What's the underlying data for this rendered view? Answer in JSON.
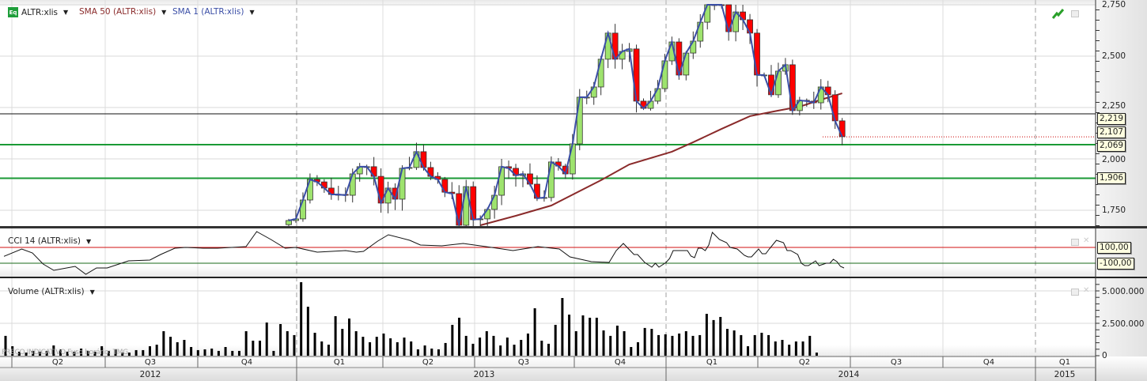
{
  "legend": {
    "instrument": "ALTR:xlis",
    "sma50": "SMA 50 (ALTR:xlis)",
    "sma1": "SMA 1 (ALTR:xlis)",
    "cci": "CCI 14 (ALTR:xlis)",
    "volume": "Volume (ALTR:xlis)",
    "eq_badge": "Eq"
  },
  "colors": {
    "up": "#9ee36e",
    "down": "#ff0000",
    "sma1": "#3a4ea6",
    "sma50": "#8a2a2a",
    "level_green": "#1a9a35",
    "cci_upper": "#d01010",
    "cci_lower": "#1a6a1a"
  },
  "price_axis": {
    "ticks": [
      "2,750",
      "2,500",
      "2,250",
      "2,000",
      "1,750"
    ],
    "tick_values": [
      2750,
      2500,
      2250,
      2000,
      1750
    ],
    "range": [
      1675,
      2772
    ],
    "levels": [
      {
        "label": "2,219",
        "value": 2219,
        "style": "black"
      },
      {
        "label": "2,107",
        "value": 2107,
        "style": "red-dotted"
      },
      {
        "label": "2,069",
        "value": 2069,
        "style": "green"
      },
      {
        "label": "1,906",
        "value": 1906,
        "style": "green"
      }
    ]
  },
  "cci_axis": {
    "upper": "100,00",
    "lower": "-100,00",
    "upper_value": 100,
    "lower_value": -100
  },
  "volume_axis": {
    "ticks": [
      "5.000.000",
      "2.500.000",
      "0"
    ],
    "tick_values": [
      5000000,
      2500000,
      0
    ]
  },
  "time_axis": {
    "quarters": [
      "Q2",
      "Q3",
      "Q4",
      "Q1",
      "Q2",
      "Q3",
      "Q4",
      "Q1",
      "Q2",
      "Q3",
      "Q4",
      "Q1"
    ],
    "years": [
      "2012",
      "2013",
      "2014",
      "2015"
    ]
  },
  "watermark": "PREÇO INDICATIVO   Fuso horário: TMG",
  "chart_data": {
    "type": "candlestick",
    "candle_closes": [
      1700,
      1708,
      1800,
      1900,
      1888,
      1858,
      1827,
      1827,
      1823,
      1927,
      1962,
      1962,
      1915,
      1785,
      1858,
      1804,
      1954,
      1958,
      2035,
      1958,
      1915,
      1900,
      1838,
      1831,
      1677,
      1865,
      1704,
      1708,
      1754,
      1823,
      1962,
      1954,
      1919,
      1927,
      1877,
      1808,
      1812,
      1985,
      1965,
      1927,
      2073,
      2300,
      2300,
      2350,
      2485,
      2612,
      2485,
      2523,
      2535,
      2281,
      2246,
      2281,
      2342,
      2477,
      2569,
      2408,
      2515,
      2573,
      2665,
      2762,
      2790,
      2773,
      2619,
      2715,
      2677,
      2612,
      2408,
      2408,
      2312,
      2427,
      2458,
      2235,
      2285,
      2281,
      2273,
      2350,
      2312,
      2185,
      2108
    ],
    "first_open": 1680,
    "sma50_points": [
      [
        27,
        1677
      ],
      [
        32,
        1723
      ],
      [
        37,
        1773
      ],
      [
        44,
        1896
      ],
      [
        48,
        1973
      ],
      [
        54,
        2035
      ],
      [
        57,
        2081
      ],
      [
        61,
        2146
      ],
      [
        65,
        2208
      ],
      [
        69,
        2235
      ],
      [
        72,
        2254
      ],
      [
        75,
        2288
      ],
      [
        78,
        2319
      ]
    ],
    "cci_points": [
      [
        0,
        -13
      ],
      [
        5,
        80
      ],
      [
        8,
        30
      ],
      [
        11,
        -110
      ],
      [
        14,
        -190
      ],
      [
        20,
        -140
      ],
      [
        23,
        -240
      ],
      [
        26,
        -160
      ],
      [
        29,
        -160
      ],
      [
        35,
        -70
      ],
      [
        41,
        -60
      ],
      [
        44,
        10
      ],
      [
        48,
        90
      ],
      [
        51,
        100
      ],
      [
        56,
        90
      ],
      [
        60,
        90
      ],
      [
        64,
        100
      ],
      [
        68,
        110
      ],
      [
        71,
        300
      ],
      [
        75,
        200
      ],
      [
        79,
        90
      ],
      [
        82,
        100
      ],
      [
        88,
        40
      ],
      [
        96,
        60
      ],
      [
        99,
        40
      ],
      [
        101,
        50
      ],
      [
        105,
        180
      ],
      [
        108,
        260
      ],
      [
        114,
        190
      ],
      [
        117,
        130
      ],
      [
        123,
        120
      ],
      [
        129,
        150
      ],
      [
        137,
        100
      ],
      [
        143,
        60
      ],
      [
        150,
        110
      ],
      [
        156,
        80
      ],
      [
        159,
        -20
      ],
      [
        165,
        -80
      ],
      [
        170,
        -90
      ],
      [
        172,
        60
      ],
      [
        174,
        150
      ],
      [
        177,
        10
      ],
      [
        178,
        10
      ],
      [
        180,
        -90
      ],
      [
        182,
        -150
      ],
      [
        183,
        -100
      ],
      [
        184,
        -150
      ],
      [
        186,
        -90
      ],
      [
        187,
        -40
      ],
      [
        188,
        60
      ],
      [
        192,
        60
      ],
      [
        193,
        -10
      ],
      [
        194,
        -30
      ],
      [
        195,
        90
      ],
      [
        196,
        90
      ],
      [
        197,
        60
      ],
      [
        198,
        130
      ],
      [
        199,
        290
      ],
      [
        201,
        200
      ],
      [
        203,
        160
      ],
      [
        204,
        100
      ],
      [
        206,
        80
      ],
      [
        208,
        0
      ],
      [
        209,
        -20
      ],
      [
        210,
        -20
      ],
      [
        212,
        80
      ],
      [
        213,
        20
      ],
      [
        214,
        20
      ],
      [
        215,
        80
      ],
      [
        217,
        190
      ],
      [
        219,
        160
      ],
      [
        220,
        60
      ],
      [
        221,
        60
      ],
      [
        223,
        10
      ],
      [
        224,
        -100
      ],
      [
        225,
        -130
      ],
      [
        226,
        -130
      ],
      [
        228,
        -70
      ],
      [
        229,
        -130
      ],
      [
        231,
        -100
      ],
      [
        232,
        -100
      ],
      [
        233,
        -50
      ],
      [
        234,
        -80
      ],
      [
        235,
        -140
      ],
      [
        236,
        -160
      ]
    ],
    "volume_millions": [
      1.53,
      0.73,
      0.31,
      0.24,
      0.37,
      0.31,
      0.37,
      0.79,
      0.49,
      0.31,
      0.31,
      0.55,
      0.37,
      0.31,
      0.73,
      0.37,
      0.49,
      0.24,
      0.24,
      0.43,
      0.43,
      0.73,
      0.85,
      1.89,
      1.46,
      1.04,
      1.22,
      0.67,
      0.43,
      0.49,
      0.55,
      0.37,
      0.67,
      0.37,
      0.37,
      1.89,
      1.16,
      1.16,
      2.56,
      0.37,
      2.44,
      1.89,
      1.59,
      5.67,
      3.78,
      1.77,
      1.1,
      0.85,
      3.05,
      2.07,
      2.87,
      1.89,
      1.46,
      1.04,
      1.46,
      1.71,
      1.34,
      1.04,
      1.4,
      1.1,
      0.49,
      0.79,
      0.55,
      0.49,
      0.98,
      2.38,
      2.93,
      1.53,
      0.92,
      1.4,
      1.89,
      1.53,
      0.79,
      1.4,
      0.85,
      1.22,
      1.71,
      3.66,
      1.16,
      0.92,
      2.38,
      4.45,
      3.17,
      1.89,
      3.11,
      2.93,
      2.93,
      1.95,
      1.53,
      2.32,
      1.89,
      0.67,
      1.04,
      2.14,
      2.07,
      1.59,
      1.65,
      1.53,
      1.71,
      1.89,
      1.53,
      1.59,
      3.23,
      2.75,
      2.99,
      2.07,
      1.95,
      1.59,
      0.73,
      1.59,
      1.77,
      1.59,
      1.1,
      1.22,
      0.85,
      1.1,
      1.1,
      1.53,
      0.24
    ],
    "x_unit": "week index"
  }
}
